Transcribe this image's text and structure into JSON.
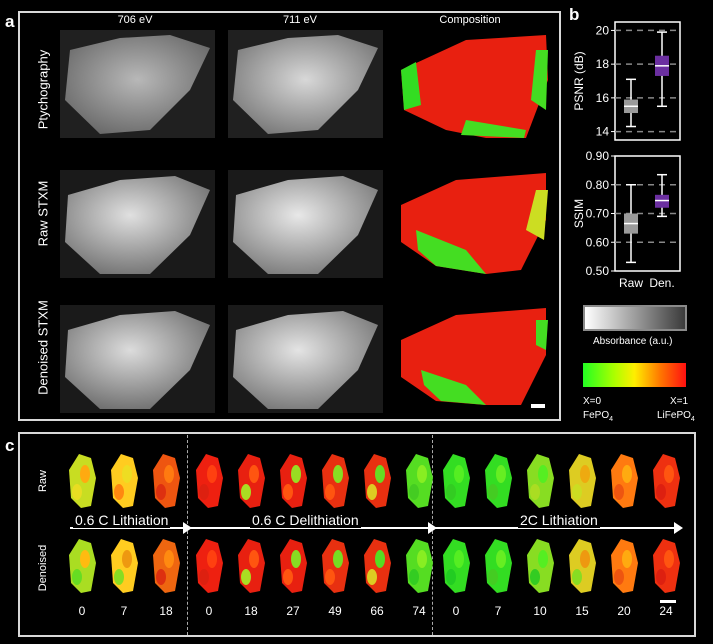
{
  "panel_a": {
    "label": "a",
    "columns": [
      "706 eV",
      "711 eV",
      "Composition"
    ],
    "rows": [
      "Ptychography",
      "Raw STXM",
      "Denoised STXM"
    ]
  },
  "panel_b": {
    "label": "b",
    "colorbar_gray_label": "Absorbance (a.u.)",
    "colorbar_color_left": "X=0",
    "colorbar_color_left_sub": "FePO",
    "colorbar_color_left_subscript": "4",
    "colorbar_color_right": "X=1",
    "colorbar_color_right_sub": "LiFePO",
    "colorbar_color_right_subscript": "4"
  },
  "panel_c": {
    "label": "c",
    "row_labels": [
      "Raw",
      "Denoised"
    ],
    "segments": [
      "0.6 C Lithiation",
      "0.6 C Delithiation",
      "2C Lithiation"
    ],
    "times": [
      "0",
      "7",
      "18",
      "0",
      "18",
      "27",
      "49",
      "66",
      "74",
      "0",
      "7",
      "10",
      "15",
      "20",
      "24"
    ]
  },
  "chart_data": [
    {
      "type": "box",
      "ylabel": "PSNR (dB)",
      "ylim": [
        13.5,
        20.5
      ],
      "yticks": [
        "14",
        "16",
        "18",
        "20"
      ],
      "categories": [
        "Raw",
        "Den."
      ],
      "boxes": [
        {
          "category": "Raw",
          "whisker_low": 14.3,
          "q1": 15.1,
          "median": 15.5,
          "q3": 15.9,
          "whisker_high": 17.1,
          "color": "#9a9a9a"
        },
        {
          "category": "Den.",
          "whisker_low": 15.5,
          "q1": 17.3,
          "median": 17.9,
          "q3": 18.5,
          "whisker_high": 19.9,
          "color": "#6b2fa0"
        }
      ]
    },
    {
      "type": "box",
      "ylabel": "SSIM",
      "ylim": [
        0.5,
        0.9
      ],
      "yticks": [
        "0.50",
        "0.60",
        "0.70",
        "0.80",
        "0.90"
      ],
      "categories": [
        "Raw",
        "Den."
      ],
      "boxes": [
        {
          "category": "Raw",
          "whisker_low": 0.53,
          "q1": 0.63,
          "median": 0.665,
          "q3": 0.7,
          "whisker_high": 0.8,
          "color": "#9a9a9a"
        },
        {
          "category": "Den.",
          "whisker_low": 0.69,
          "q1": 0.72,
          "median": 0.745,
          "q3": 0.765,
          "whisker_high": 0.835,
          "color": "#6b2fa0"
        }
      ]
    }
  ]
}
